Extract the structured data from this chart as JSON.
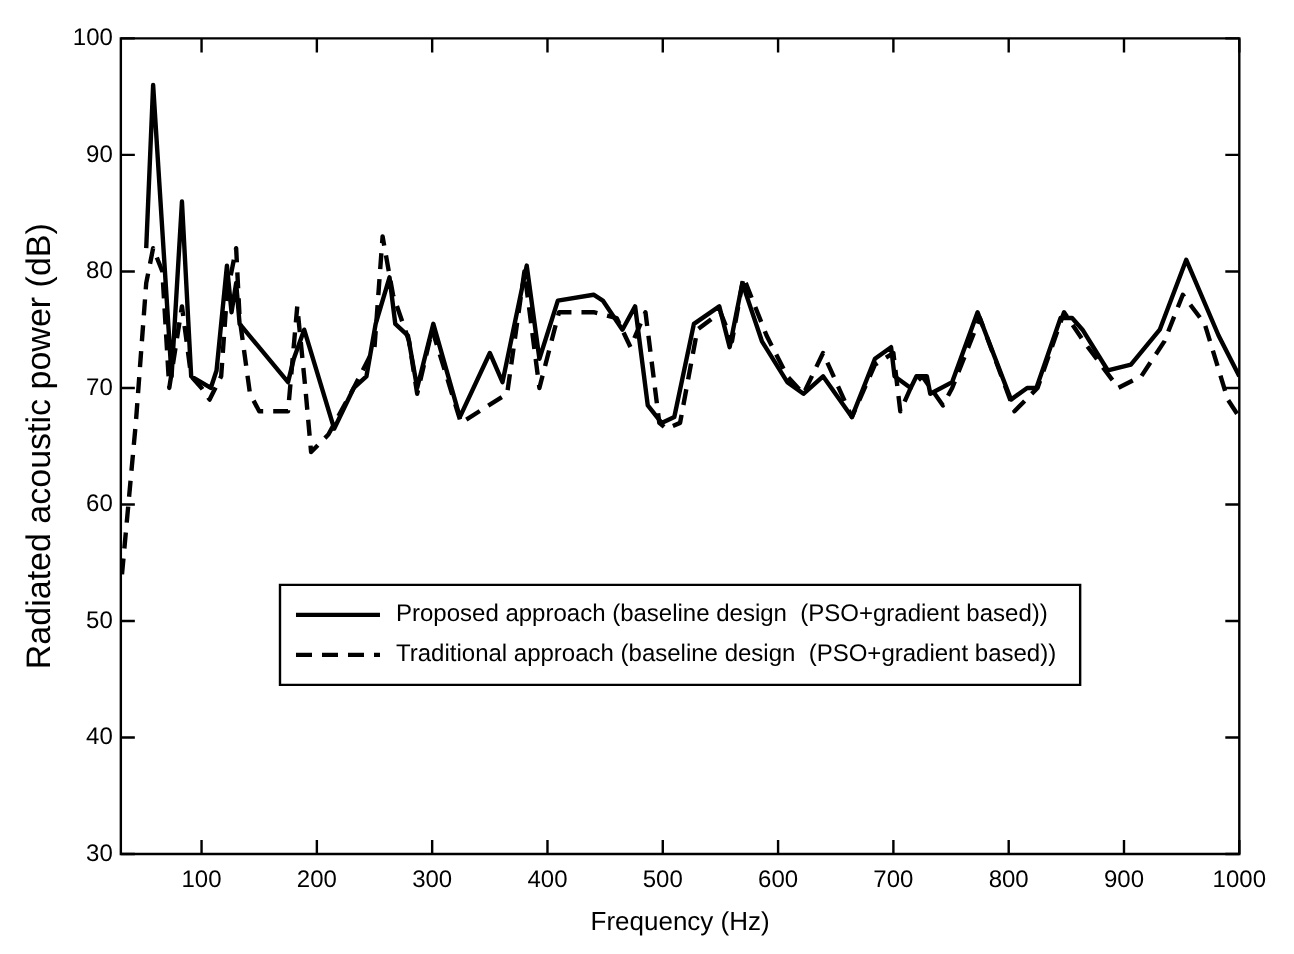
{
  "chart_data": {
    "type": "line",
    "xlabel": "Frequency (Hz)",
    "ylabel": "Radiated acoustic power (dB)",
    "xlim": [
      30,
      1000
    ],
    "xticks": [
      100,
      200,
      300,
      400,
      500,
      600,
      700,
      800,
      900,
      1000
    ],
    "ylim": [
      30,
      100
    ],
    "yticks": [
      30,
      40,
      50,
      60,
      70,
      80,
      90,
      100
    ],
    "grid": false,
    "legend": "bottom",
    "marker": "none",
    "series": [
      {
        "name": "Proposed approach (baseline design  (PSO+gradient based))",
        "color": "#000000",
        "line_style": "solid",
        "x": [
          52,
          58,
          74,
          83,
          91,
          108,
          113,
          122,
          126,
          130,
          133,
          175,
          180,
          189,
          215,
          232,
          243,
          251,
          263,
          268,
          279,
          287,
          301,
          324,
          350,
          361,
          382,
          393,
          409,
          440,
          448,
          465,
          476,
          487,
          499,
          510,
          527,
          549,
          558,
          569,
          586,
          608,
          622,
          639,
          664,
          684,
          698,
          701,
          715,
          720,
          729,
          732,
          751,
          773,
          802,
          816,
          824,
          845,
          855,
          864,
          886,
          906,
          931,
          954,
          982,
          1000
        ],
        "values": [
          82,
          96,
          71,
          86,
          71,
          70,
          71.5,
          80.5,
          76.5,
          79,
          75.5,
          70.5,
          72.5,
          75,
          66.5,
          70,
          71,
          75.5,
          79.5,
          75.5,
          74.5,
          70,
          75.5,
          67.5,
          73,
          70.5,
          80.5,
          72.5,
          77.5,
          78,
          77.5,
          75,
          77,
          68.5,
          67,
          67.5,
          75.5,
          77,
          73.5,
          79,
          74,
          70.5,
          69.5,
          71,
          67.5,
          72.5,
          73.5,
          71,
          70,
          71,
          71,
          69.5,
          70.5,
          76.5,
          69,
          70,
          70,
          76,
          76,
          75,
          71.5,
          72,
          75,
          81,
          74.5,
          71
        ]
      },
      {
        "name": "Traditional approach (baseline design  (PSO+gradient based))",
        "color": "#000000",
        "line_style": "dashed",
        "x": [
          31,
          43,
          52,
          58,
          66,
          72,
          83,
          91,
          100,
          107,
          117,
          122,
          130,
          133,
          142,
          150,
          175,
          183,
          190,
          195,
          210,
          232,
          250,
          257,
          266,
          280,
          287,
          300,
          325,
          365,
          380,
          393,
          410,
          440,
          460,
          472,
          485,
          497,
          503,
          515,
          530,
          550,
          560,
          570,
          590,
          608,
          622,
          639,
          664,
          684,
          700,
          706,
          715,
          725,
          743,
          751,
          775,
          805,
          825,
          848,
          865,
          895,
          915,
          935,
          951,
          970,
          990,
          1000
        ],
        "values": [
          54,
          67,
          79,
          82,
          80,
          70,
          77,
          71,
          70,
          69,
          71,
          78,
          82,
          76,
          69.5,
          68,
          68,
          77,
          70,
          64.5,
          66,
          70,
          73.5,
          83,
          78,
          74,
          69.5,
          75,
          67,
          69.5,
          80,
          70,
          76.5,
          76.5,
          76,
          73.5,
          76.5,
          67,
          66.5,
          67,
          75,
          76.5,
          74,
          79.5,
          74.5,
          71,
          69.5,
          73,
          67.5,
          72,
          73,
          68,
          70,
          71,
          68.5,
          70,
          76,
          68,
          70,
          76.5,
          74,
          70,
          71,
          74,
          78,
          75.5,
          69,
          67.5
        ]
      }
    ]
  }
}
